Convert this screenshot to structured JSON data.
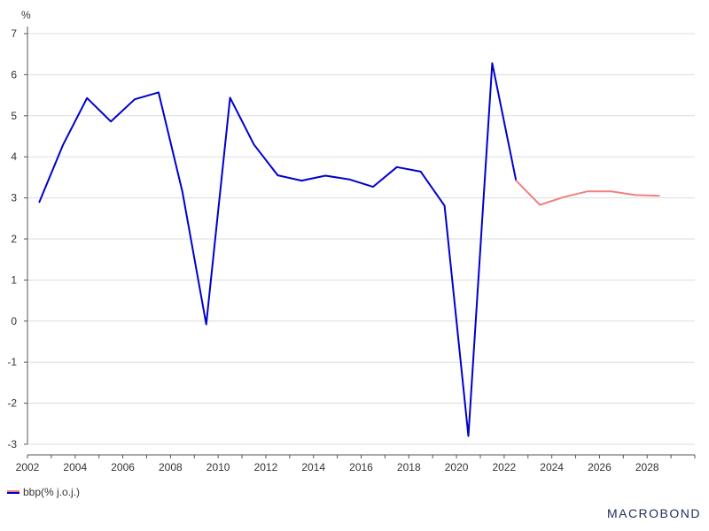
{
  "chart_data": {
    "type": "line",
    "ylabel": "%",
    "ylim": [
      -3,
      7
    ],
    "yticks": [
      -3,
      -2,
      -1,
      0,
      1,
      2,
      3,
      4,
      5,
      6,
      7
    ],
    "xlim": [
      2002,
      2030
    ],
    "xticks": [
      2002,
      2004,
      2006,
      2008,
      2010,
      2012,
      2014,
      2016,
      2018,
      2020,
      2022,
      2024,
      2026,
      2028
    ],
    "grid": true,
    "legend_position": "bottom-left",
    "series": [
      {
        "name": "bbp(% j.o.j.)",
        "color": "#0000cc",
        "x": [
          2002.5,
          2003.5,
          2004.5,
          2005.5,
          2006.5,
          2007.5,
          2008.5,
          2009.5,
          2010.5,
          2011.5,
          2012.5,
          2013.5,
          2014.5,
          2015.5,
          2016.5,
          2017.5,
          2018.5,
          2019.5,
          2020.5,
          2021.5,
          2022.5
        ],
        "values": [
          2.9,
          4.3,
          5.43,
          4.86,
          5.4,
          5.57,
          3.15,
          -0.08,
          5.44,
          4.3,
          3.55,
          3.42,
          3.54,
          3.45,
          3.27,
          3.75,
          3.64,
          2.81,
          -2.8,
          6.28,
          3.42
        ]
      },
      {
        "name": "bbp(% j.o.j.) forecast",
        "color": "#f08080",
        "x": [
          2022.5,
          2023.5,
          2024.5,
          2025.5,
          2026.5,
          2027.5,
          2028.5
        ],
        "values": [
          3.42,
          2.83,
          3.02,
          3.16,
          3.16,
          3.07,
          3.05
        ]
      }
    ]
  },
  "legend": {
    "label": "bbp(% j.o.j.)"
  },
  "brand": {
    "text": "MACROBOND"
  }
}
